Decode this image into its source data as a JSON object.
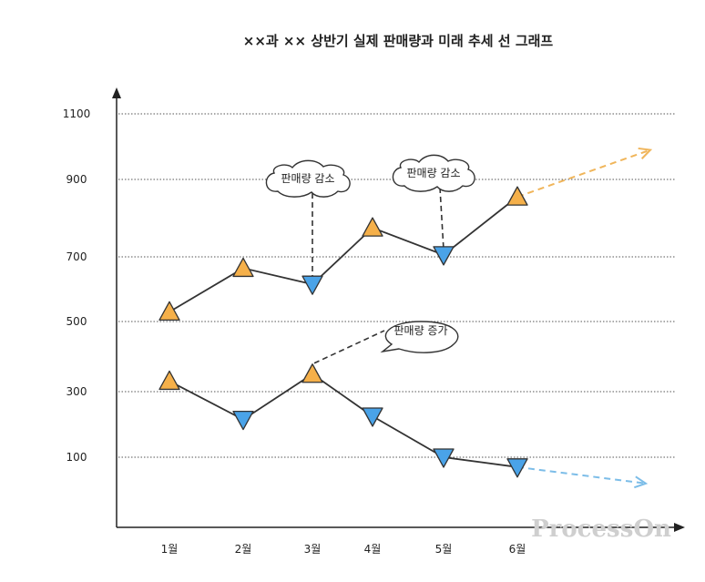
{
  "chart_data": {
    "type": "line",
    "title": "××과 ×× 상반기 실제 판매량과 미래 추세 선 그래프",
    "xlabel": "",
    "ylabel": "",
    "categories": [
      "1월",
      "2월",
      "3월",
      "4월",
      "5월",
      "6월"
    ],
    "y_ticks": [
      "100",
      "300",
      "500",
      "700",
      "900",
      "1100"
    ],
    "grid": "horizontal dotted",
    "series": [
      {
        "values": [
          530,
          665,
          615,
          775,
          705,
          855
        ],
        "markers": [
          "up",
          "up",
          "down",
          "up",
          "down",
          "up"
        ],
        "trend_to": 990,
        "trend_color": "#f0b55a"
      },
      {
        "values": [
          330,
          215,
          350,
          225,
          100,
          70
        ],
        "markers": [
          "up",
          "down",
          "up",
          "down",
          "down",
          "down"
        ],
        "trend_to": 20,
        "trend_color": "#7cbde8"
      }
    ],
    "colors": {
      "up": "#f5b04a",
      "down": "#4aa3e8",
      "line": "#333333",
      "grid": "#555555"
    },
    "annotations": [
      {
        "text": "판매량 감소",
        "series": 0,
        "category": "3월"
      },
      {
        "text": "판매량 감소",
        "series": 0,
        "category": "5월"
      },
      {
        "text": "판매량 증가",
        "series": 1,
        "category": "3월"
      }
    ]
  },
  "watermark": "ProcessOn"
}
